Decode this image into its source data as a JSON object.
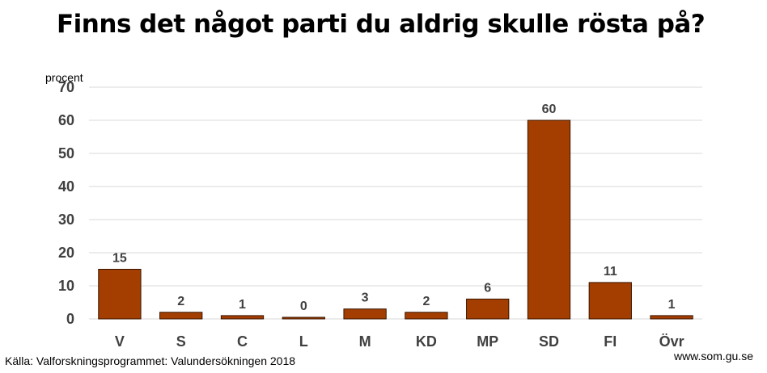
{
  "title": "Finns det något parti du aldrig skulle rösta på?",
  "footer": {
    "source": "Källa: Valforskningsprogrammet: Valundersökningen 2018",
    "website": "www.som.gu.se"
  },
  "colors": {
    "bar_fill": "#a33e00",
    "bar_stroke": "#3a1500",
    "gridline": "#d9d9d9",
    "text": "#404040"
  },
  "chart_data": {
    "type": "bar",
    "title": "Finns det något parti du aldrig skulle rösta på?",
    "ylabel": "procent",
    "xlabel": "",
    "categories": [
      "V",
      "S",
      "C",
      "L",
      "M",
      "KD",
      "MP",
      "SD",
      "FI",
      "Övr"
    ],
    "values": [
      15,
      2,
      1,
      0,
      3,
      2,
      6,
      60,
      11,
      1
    ],
    "data_labels": [
      "15",
      "2",
      "1",
      "0",
      "3",
      "2",
      "6",
      "60",
      "11",
      "1"
    ],
    "ylim": [
      0,
      70
    ],
    "yticks": [
      0,
      10,
      20,
      30,
      40,
      50,
      60,
      70
    ],
    "grid": true,
    "legend": "none"
  }
}
